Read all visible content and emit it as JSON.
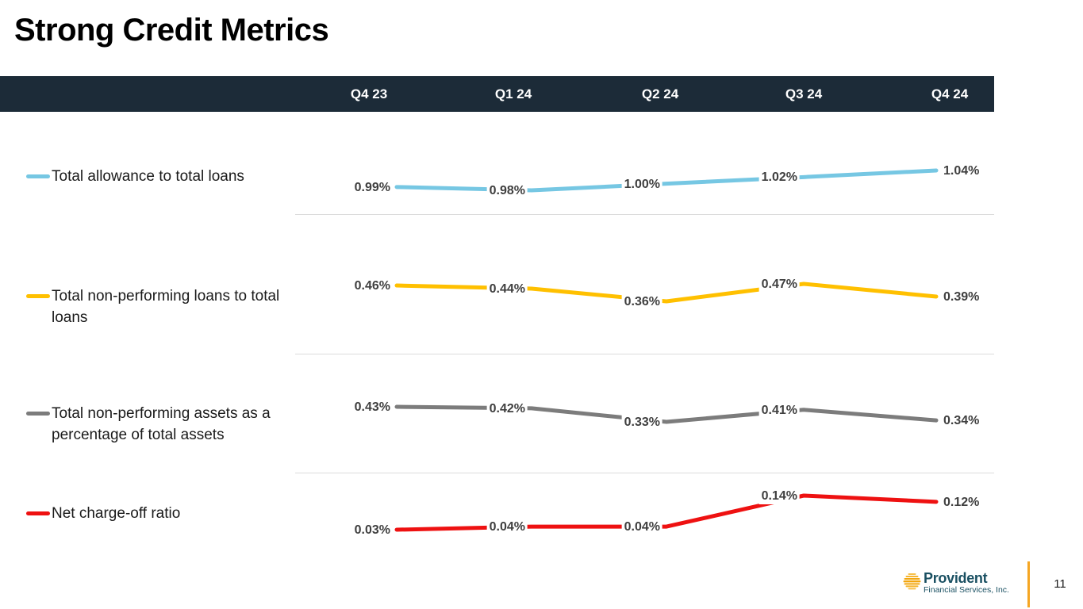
{
  "slide": {
    "title": "Strong Credit Metrics"
  },
  "header": {
    "columns": [
      "Q4 23",
      "Q1 24",
      "Q2 24",
      "Q3 24",
      "Q4 24"
    ]
  },
  "chart_data": {
    "type": "line",
    "categories": [
      "Q4 23",
      "Q1 24",
      "Q2 24",
      "Q3 24",
      "Q4 24"
    ],
    "unit": "%",
    "legend_position": "left",
    "grid": "horizontal-row-dividers",
    "series": [
      {
        "name": "Total allowance to total loans",
        "color": "#76C7E3",
        "values": [
          0.99,
          0.98,
          1.0,
          1.02,
          1.04
        ],
        "labels": [
          "0.99%",
          "0.98%",
          "1.00%",
          "1.02%",
          "1.04%"
        ]
      },
      {
        "name": "Total non-performing loans to total loans",
        "color": "#FFC000",
        "values": [
          0.46,
          0.44,
          0.36,
          0.47,
          0.39
        ],
        "labels": [
          "0.46%",
          "0.44%",
          "0.36%",
          "0.47%",
          "0.39%"
        ]
      },
      {
        "name": "Total non-performing assets as a percentage of total assets",
        "color": "#7C7C7C",
        "values": [
          0.43,
          0.42,
          0.33,
          0.41,
          0.34
        ],
        "labels": [
          "0.43%",
          "0.42%",
          "0.33%",
          "0.41%",
          "0.34%"
        ]
      },
      {
        "name": "Net charge-off ratio",
        "color": "#EE1111",
        "values": [
          0.03,
          0.04,
          0.04,
          0.14,
          0.12
        ],
        "labels": [
          "0.03%",
          "0.04%",
          "0.04%",
          "0.14%",
          "0.12%"
        ]
      }
    ]
  },
  "footer": {
    "logo_name": "Provident",
    "logo_subtitle": "Financial Services, Inc.",
    "page_number": "11",
    "accent_color": "#F5A623"
  }
}
